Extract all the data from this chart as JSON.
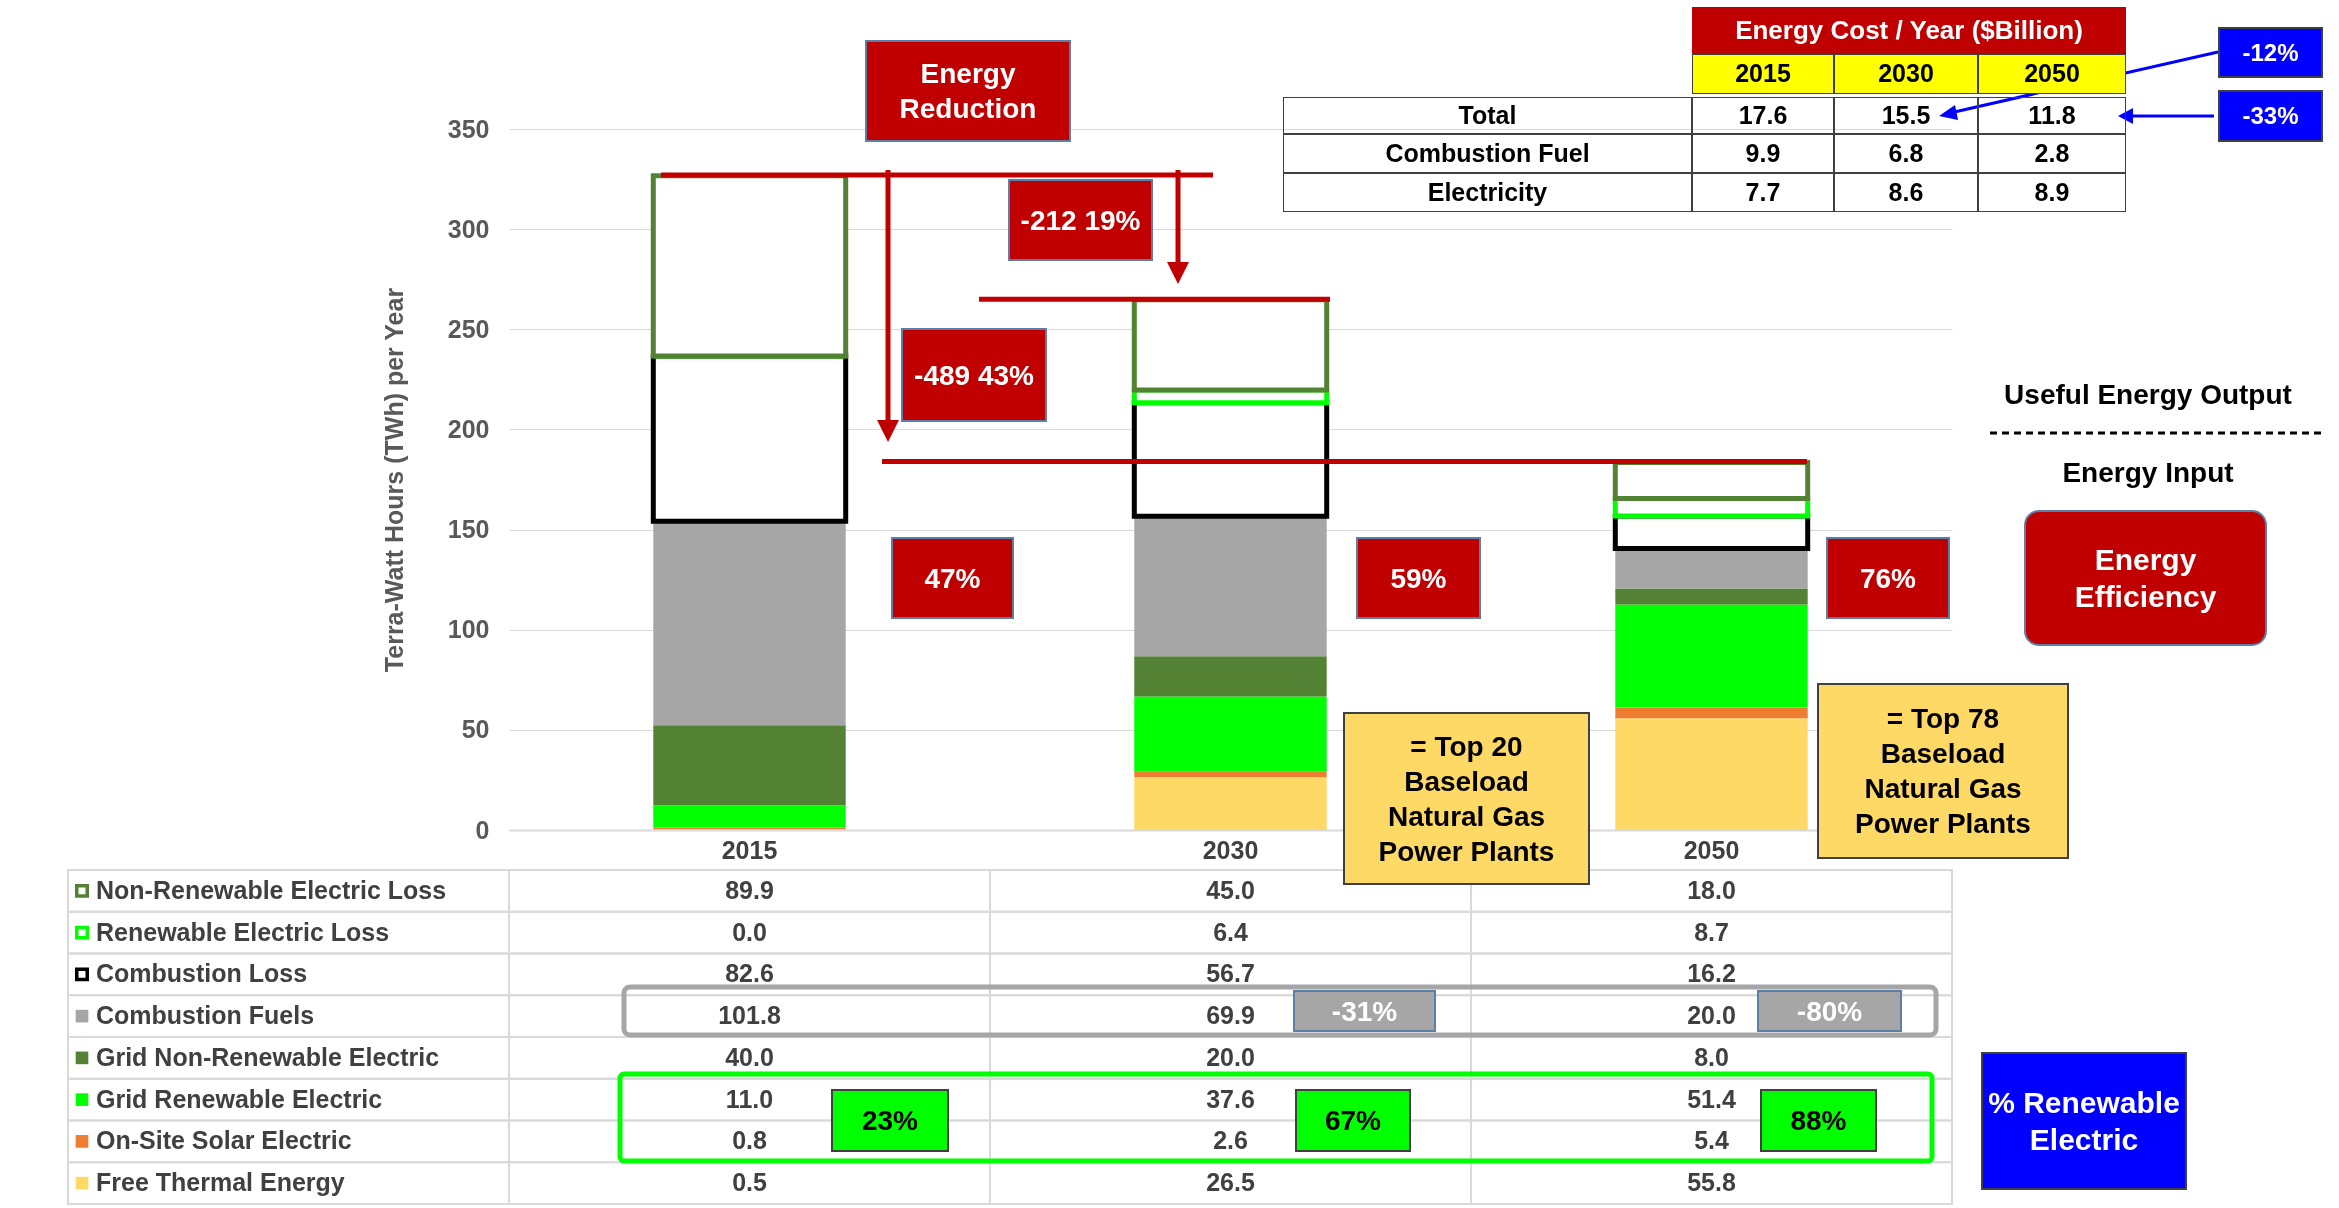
{
  "chart_data": {
    "type": "bar",
    "stacked": true,
    "categories": [
      "2015",
      "2030",
      "2050"
    ],
    "ylabel": "Terra-Watt Hours (TWh) per Year",
    "ylim": [
      0,
      350
    ],
    "yticks": [
      0,
      50,
      100,
      150,
      200,
      250,
      300,
      350
    ],
    "grid": "y",
    "legend": "bottom",
    "ref_lines": [
      {
        "axis": "y",
        "value": 327,
        "color": "#c00000"
      },
      {
        "axis": "y",
        "value": 265,
        "color": "#c00000"
      },
      {
        "axis": "y",
        "value": 184,
        "color": "#c00000"
      }
    ],
    "series": [
      {
        "name": "Free Thermal Energy",
        "color": "#ffd966",
        "values": [
          0.5,
          26.5,
          55.8
        ],
        "value_labels": [
          "0.5",
          "26.5",
          "55.8"
        ]
      },
      {
        "name": "On-Site Solar Electric",
        "color": "#ed7d31",
        "values": [
          0.8,
          2.6,
          5.4
        ],
        "value_labels": [
          "0.8",
          "2.6",
          "5.4"
        ]
      },
      {
        "name": "Grid Renewable Electric",
        "color": "#00ff00",
        "values": [
          11.0,
          37.6,
          51.4
        ],
        "value_labels": [
          "11.0",
          "37.6",
          "51.4"
        ]
      },
      {
        "name": "Grid Non-Renewable Electric",
        "color": "#548235",
        "values": [
          40.0,
          20.0,
          8.0
        ],
        "value_labels": [
          "40.0",
          "20.0",
          "8.0"
        ]
      },
      {
        "name": "Combustion Fuels",
        "color": "#a6a6a6",
        "values": [
          101.8,
          69.9,
          20.0
        ],
        "value_labels": [
          "101.8",
          "69.9",
          "20.0"
        ]
      },
      {
        "name": "Combustion Loss",
        "color": "#000000",
        "values": [
          82.6,
          56.7,
          16.2
        ],
        "value_labels": [
          "82.6",
          "56.7",
          "16.2"
        ]
      },
      {
        "name": "Renewable Electric Loss",
        "color": "#00ff00",
        "values": [
          0.0,
          6.4,
          8.7
        ],
        "value_labels": [
          "0.0",
          "6.4",
          "8.7"
        ]
      },
      {
        "name": "Non-Renewable Electric Loss",
        "color": "#548235",
        "values": [
          89.9,
          45.0,
          18.0
        ],
        "value_labels": [
          "89.9",
          "45.0",
          "18.0"
        ]
      }
    ],
    "annotations": [
      "Energy Reduction",
      "-212 19%",
      "-489 43%",
      "47%",
      "59%",
      "76%",
      "= Top 20 Baseload Natural Gas Power Plants",
      "= Top 78 Baseload Natural Gas Power Plants",
      "-31%",
      "-80%",
      "23%",
      "67%",
      "88%",
      "Useful Energy Output",
      "Energy Input",
      "Energy Efficiency",
      "% Renewable Electric",
      "Energy Cost / Year ($Billion)",
      "2015",
      "2030",
      "2050",
      "Total",
      "17.6",
      "15.5",
      "11.8",
      "Combustion Fuel",
      "9.9",
      "6.8",
      "2.8",
      "Electricity",
      "7.7",
      "8.6",
      "8.9",
      "-12%",
      "-33%"
    ]
  }
}
